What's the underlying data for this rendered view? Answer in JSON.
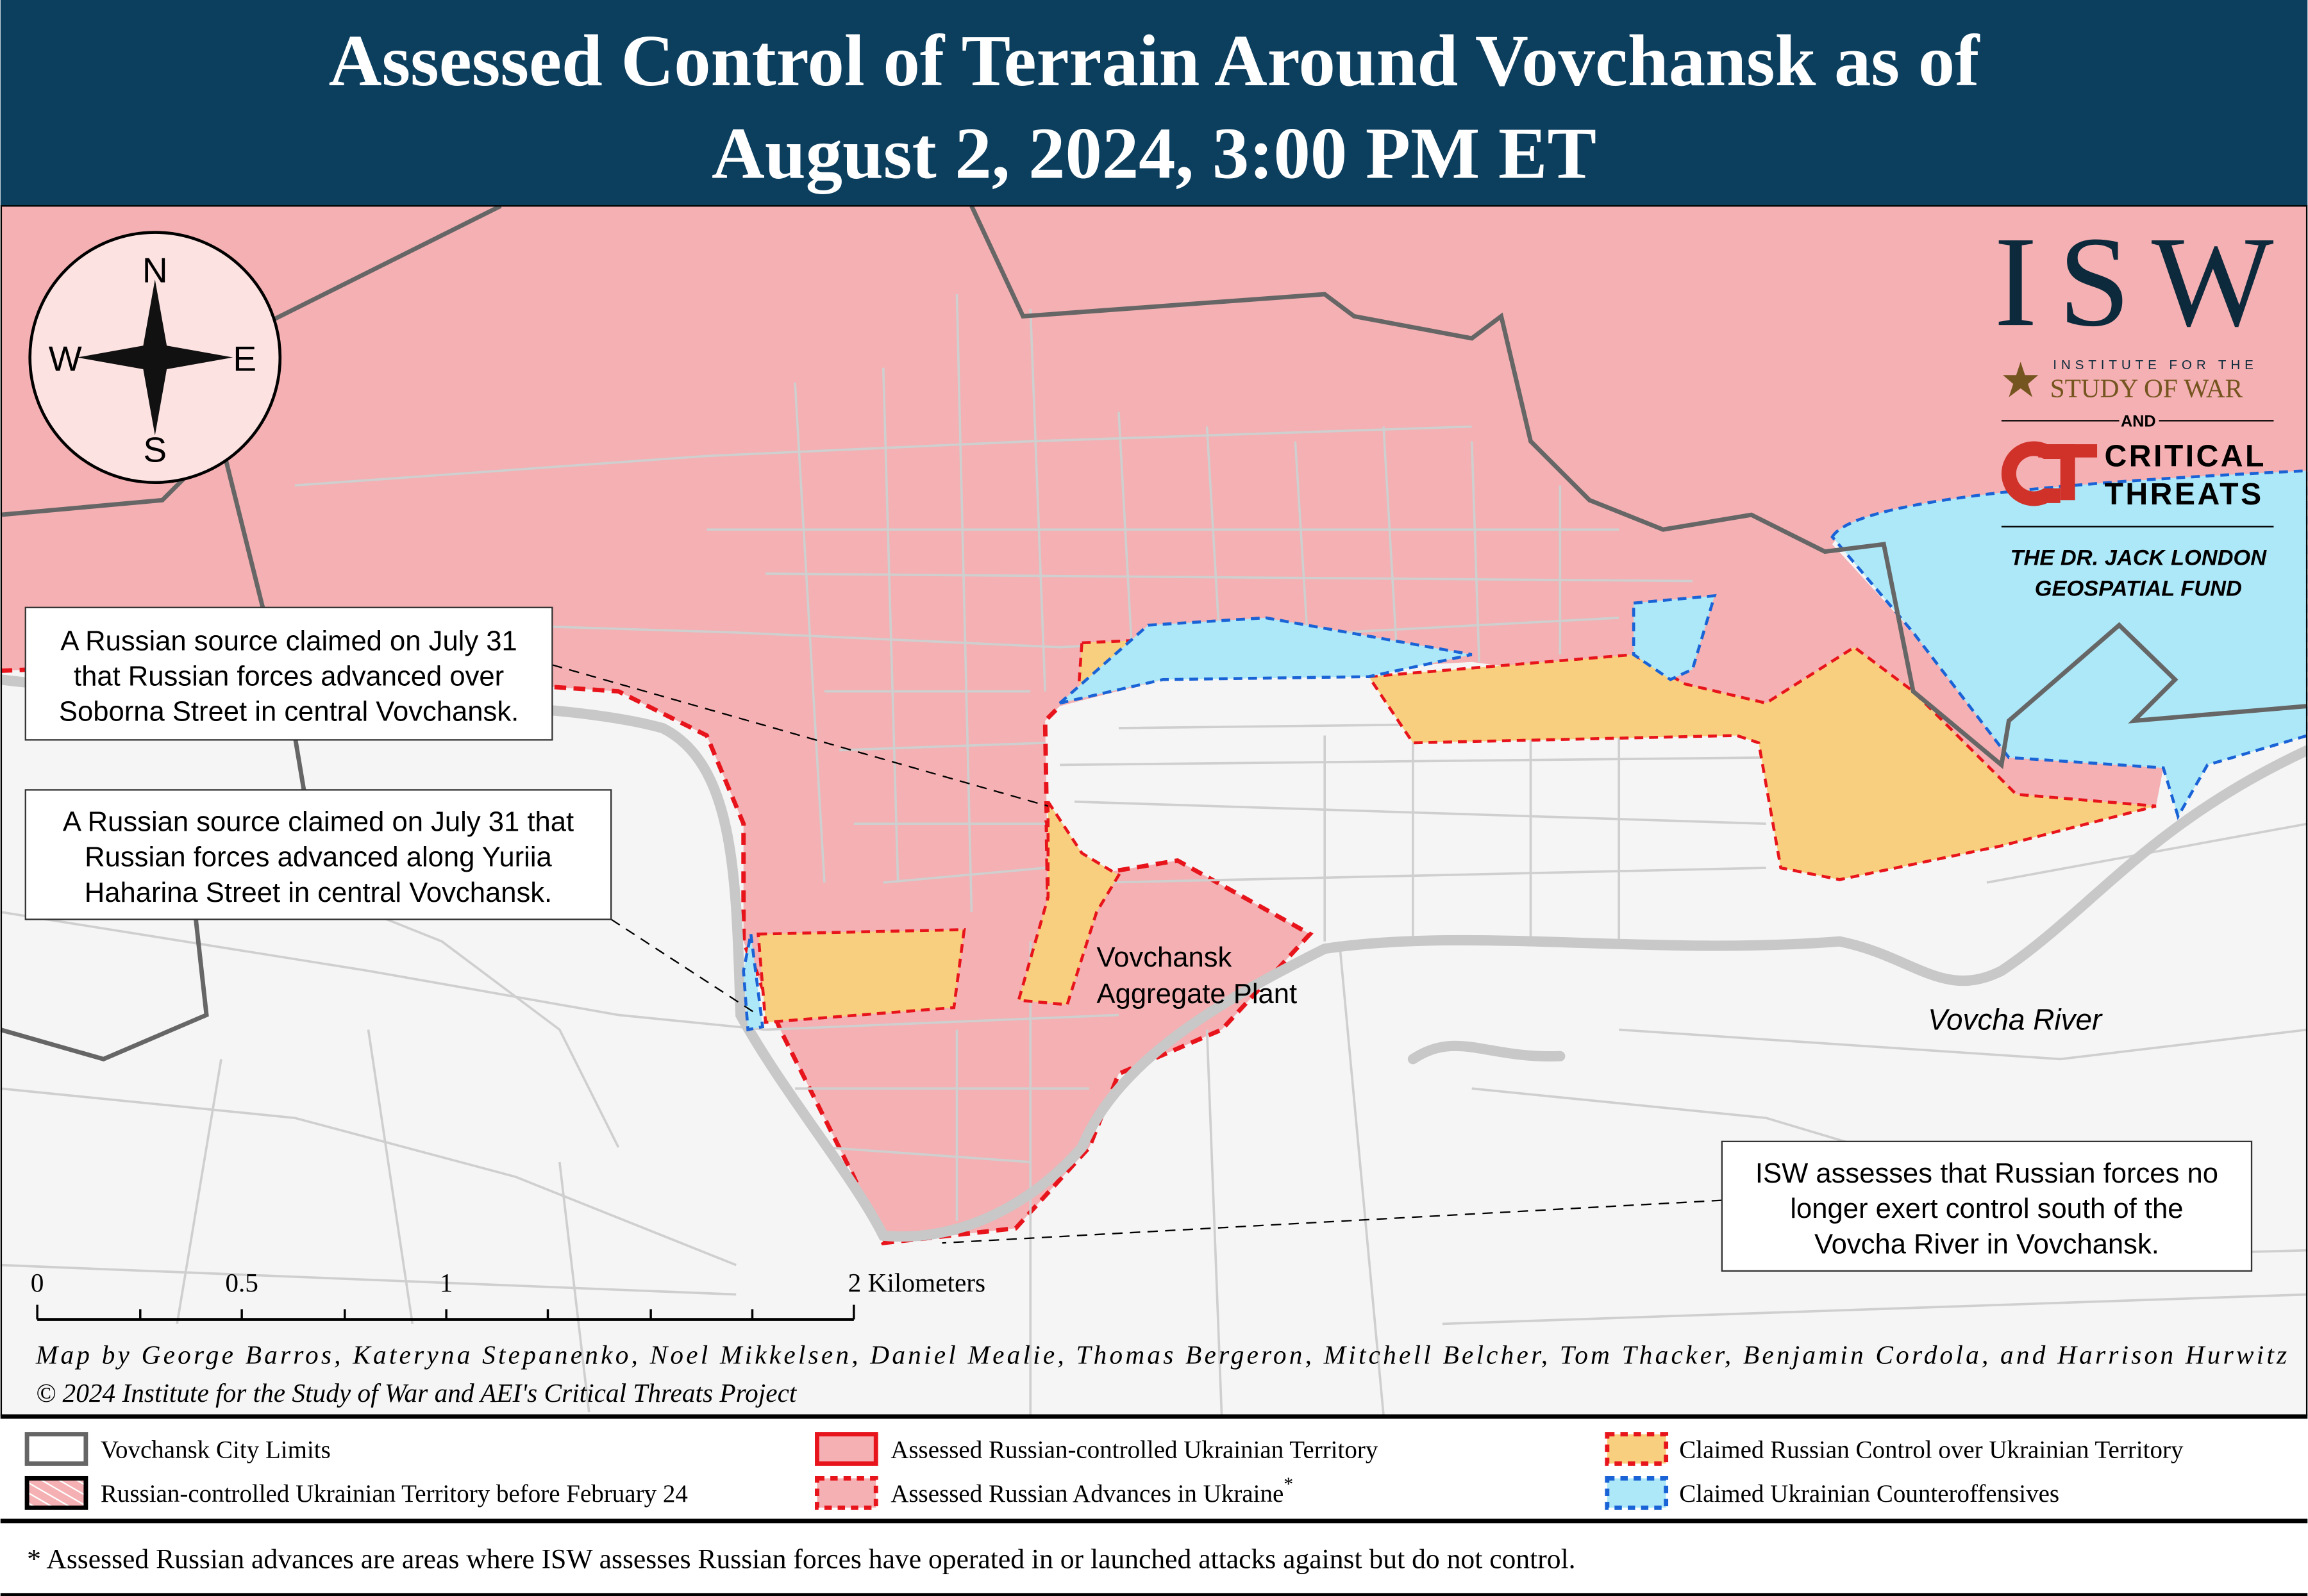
{
  "title": {
    "line1": "Assessed Control of Terrain Around Vovchansk as of",
    "line2": "August 2, 2024, 3:00 PM ET"
  },
  "colors": {
    "title_bar": "#0c3e5e",
    "russian_controlled": "#f4b0b2",
    "assessed_border": "#e8141c",
    "claimed_russian": "#f8cf7e",
    "claimed_ukrainian": "#ade8f8",
    "ukrainian_border": "#1a63d6",
    "city_limits": "#666666",
    "river": "#c8c8c8",
    "background": "#f5f5f5"
  },
  "compass": {
    "n": "N",
    "s": "S",
    "e": "E",
    "w": "W"
  },
  "logos": {
    "isw": "ISW",
    "isw_sub1": "INSTITUTE FOR THE",
    "isw_sub2": "STUDY OF WAR",
    "and": "AND",
    "ct1": "CRITICAL",
    "ct2": "THREATS",
    "fund1": "THE DR. JACK LONDON",
    "fund2": "GEOSPATIAL FUND"
  },
  "callouts": [
    {
      "lines": [
        "A Russian source claimed on July 31",
        "that Russian forces advanced over",
        "Soborna Street in central Vovchansk."
      ]
    },
    {
      "lines": [
        "A Russian source claimed on July 31 that",
        "Russian forces advanced along Yuriia",
        "Haharina Street in central Vovchansk."
      ]
    },
    {
      "lines": [
        "ISW assesses that Russian forces no",
        "longer exert control south of the",
        "Vovcha River in Vovchansk."
      ]
    }
  ],
  "places": {
    "plant1": "Vovchansk",
    "plant2": "Aggregate Plant",
    "river": "Vovcha River"
  },
  "scale": {
    "ticks": [
      "0",
      "0.5",
      "1",
      "2 Kilometers"
    ]
  },
  "credits": {
    "line1": "Map by George Barros, Kateryna Stepanenko, Noel Mikkelsen, Daniel Mealie, Thomas Bergeron, Mitchell Belcher, Tom Thacker, Benjamin Cordola, and Harrison Hurwitz",
    "line2": "© 2024 Institute for the Study of War and AEI's Critical Threats Project"
  },
  "legend": [
    {
      "label": "Vovchansk City Limits",
      "icon": "city-limits-swatch"
    },
    {
      "label": "Russian-controlled Ukrainian Territory before February 24",
      "icon": "hatched-swatch"
    },
    {
      "label": "Assessed Russian-controlled Ukrainian Territory",
      "icon": "solid-red-swatch"
    },
    {
      "label": "Assessed Russian Advances in Ukraine",
      "sup": "*",
      "icon": "dashed-red-swatch"
    },
    {
      "label": "Claimed Russian Control over Ukrainian Territory",
      "icon": "orange-dashed-swatch"
    },
    {
      "label": "Claimed Ukrainian Counteroffensives",
      "icon": "blue-dashed-swatch"
    }
  ],
  "footnote": "* Assessed Russian advances are areas where ISW assesses Russian forces have operated in or launched attacks against but do not control."
}
